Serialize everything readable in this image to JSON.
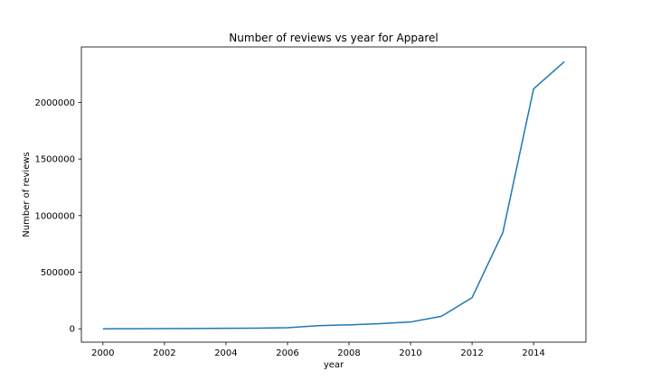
{
  "chart_data": {
    "type": "line",
    "title": "Number of reviews vs year for Apparel",
    "xlabel": "year",
    "ylabel": "Number of reviews",
    "xlim": [
      1999.3,
      2015.7
    ],
    "ylim": [
      -118000,
      2490000
    ],
    "x_ticks": [
      2000,
      2002,
      2004,
      2006,
      2008,
      2010,
      2012,
      2014
    ],
    "x_tick_labels": [
      "2000",
      "2002",
      "2004",
      "2006",
      "2008",
      "2010",
      "2012",
      "2014"
    ],
    "y_ticks": [
      0,
      500000,
      1000000,
      1500000,
      2000000
    ],
    "y_tick_labels": [
      "0",
      "500000",
      "1000000",
      "1500000",
      "2000000"
    ],
    "grid": false,
    "color": "#1f77b4",
    "series": [
      {
        "x": [
          2000,
          2001,
          2002,
          2003,
          2004,
          2005,
          2006,
          2007,
          2008,
          2009,
          2010,
          2011,
          2012,
          2013,
          2014,
          2015
        ],
        "values": [
          0,
          500,
          1500,
          3000,
          4500,
          6000,
          10000,
          28000,
          35000,
          45000,
          60000,
          110000,
          275000,
          850000,
          2120000,
          2360000
        ]
      }
    ]
  }
}
